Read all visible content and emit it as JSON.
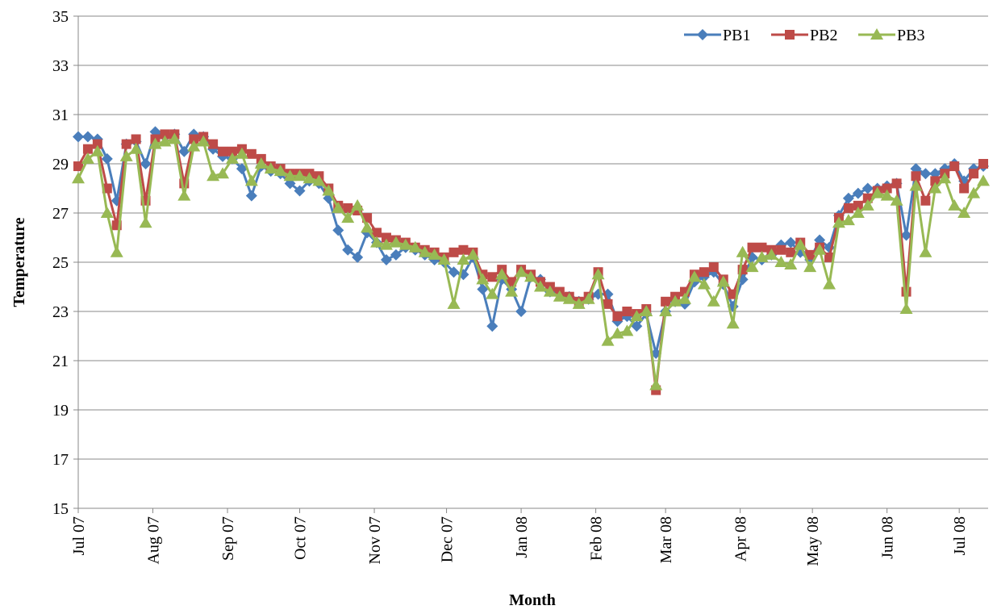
{
  "chart_data": {
    "type": "line",
    "x_label": "Month",
    "y_label": "Temperature",
    "x": [
      0,
      4,
      8,
      12,
      16,
      20,
      24,
      28,
      32,
      36,
      40,
      44,
      48,
      52,
      56,
      60,
      64,
      68,
      72,
      76,
      80,
      84,
      88,
      92,
      96,
      100,
      104,
      108,
      112,
      116,
      120,
      124,
      128,
      132,
      136,
      140,
      144,
      148,
      152,
      156,
      160,
      164,
      168,
      172,
      176,
      180,
      184,
      188,
      192,
      196,
      200,
      204,
      208,
      212,
      216,
      220,
      224,
      228,
      232,
      236,
      240,
      244,
      248,
      252,
      256,
      260,
      264,
      268,
      272,
      276,
      280,
      284,
      288,
      292,
      296,
      300,
      304,
      308,
      312,
      316,
      320,
      324,
      328,
      332,
      336,
      340,
      344,
      348,
      352,
      356,
      360,
      364,
      368,
      372,
      376
    ],
    "xlim": [
      0,
      378
    ],
    "xticks": [
      {
        "value": 0,
        "label": "Jul 07"
      },
      {
        "value": 31,
        "label": "Aug 07"
      },
      {
        "value": 62,
        "label": "Sep 07"
      },
      {
        "value": 92,
        "label": "Oct 07"
      },
      {
        "value": 123,
        "label": "Nov 07"
      },
      {
        "value": 153,
        "label": "Dec 07"
      },
      {
        "value": 184,
        "label": "Jan 08"
      },
      {
        "value": 215,
        "label": "Feb 08"
      },
      {
        "value": 244,
        "label": "Mar 08"
      },
      {
        "value": 275,
        "label": "Apr 08"
      },
      {
        "value": 305,
        "label": "May 08"
      },
      {
        "value": 336,
        "label": "Jun 08"
      },
      {
        "value": 366,
        "label": "Jul 08"
      }
    ],
    "ylim": [
      15,
      35
    ],
    "yticks": [
      15,
      17,
      19,
      21,
      23,
      25,
      27,
      29,
      31,
      33,
      35
    ],
    "grid": true,
    "legend": "top-right",
    "series": [
      {
        "name": "PB1",
        "color": "#4a7ebb",
        "marker": "diamond",
        "values": [
          30.1,
          30.1,
          30.0,
          29.2,
          27.5,
          29.8,
          29.9,
          29.0,
          30.3,
          30.1,
          30.2,
          29.5,
          30.2,
          30.1,
          29.6,
          29.3,
          29.2,
          28.8,
          27.7,
          28.9,
          28.7,
          28.6,
          28.2,
          27.9,
          28.3,
          28.2,
          27.6,
          26.3,
          25.5,
          25.2,
          26.2,
          25.8,
          25.1,
          25.3,
          25.6,
          25.5,
          25.3,
          25.1,
          25.0,
          24.6,
          24.5,
          25.2,
          23.9,
          22.4,
          24.3,
          23.9,
          23.0,
          24.4,
          24.3,
          23.8,
          23.7,
          23.6,
          23.4,
          23.5,
          23.7,
          23.7,
          22.6,
          22.8,
          22.4,
          22.9,
          21.3,
          23.0,
          23.4,
          23.3,
          24.2,
          24.4,
          24.6,
          24.1,
          23.2,
          24.3,
          25.2,
          25.1,
          25.3,
          25.7,
          25.8,
          25.4,
          25.1,
          25.9,
          25.6,
          26.9,
          27.6,
          27.8,
          28.0,
          28.0,
          28.1,
          28.2,
          26.1,
          28.8,
          28.6,
          28.6,
          28.8,
          29.0,
          28.3,
          28.8,
          28.9
        ]
      },
      {
        "name": "PB2",
        "color": "#be4b48",
        "marker": "square",
        "values": [
          28.9,
          29.6,
          29.8,
          28.0,
          26.5,
          29.8,
          30.0,
          27.5,
          30.0,
          30.2,
          30.2,
          28.2,
          30.0,
          30.1,
          29.8,
          29.5,
          29.5,
          29.6,
          29.4,
          29.2,
          28.9,
          28.8,
          28.6,
          28.6,
          28.6,
          28.5,
          28.0,
          27.3,
          27.2,
          27.1,
          26.8,
          26.2,
          26.0,
          25.9,
          25.8,
          25.6,
          25.5,
          25.4,
          25.2,
          25.4,
          25.5,
          25.4,
          24.5,
          24.4,
          24.7,
          24.2,
          24.7,
          24.5,
          24.2,
          24.0,
          23.8,
          23.6,
          23.4,
          23.6,
          24.6,
          23.3,
          22.8,
          23.0,
          22.9,
          23.1,
          19.8,
          23.4,
          23.6,
          23.8,
          24.5,
          24.6,
          24.8,
          24.3,
          23.7,
          24.7,
          25.6,
          25.6,
          25.5,
          25.5,
          25.4,
          25.8,
          25.3,
          25.6,
          25.2,
          26.8,
          27.2,
          27.3,
          27.6,
          27.9,
          28.0,
          28.2,
          23.8,
          28.5,
          27.5,
          28.3,
          28.6,
          28.9,
          28.0,
          28.6,
          29.0
        ]
      },
      {
        "name": "PB3",
        "color": "#98b954",
        "marker": "triangle",
        "values": [
          28.4,
          29.2,
          29.5,
          27.0,
          25.4,
          29.3,
          29.6,
          26.6,
          29.8,
          29.9,
          30.0,
          27.7,
          29.7,
          29.9,
          28.5,
          28.6,
          29.2,
          29.4,
          28.3,
          29.0,
          28.8,
          28.7,
          28.5,
          28.5,
          28.4,
          28.3,
          27.9,
          27.2,
          26.8,
          27.3,
          26.4,
          25.8,
          25.7,
          25.8,
          25.7,
          25.6,
          25.4,
          25.3,
          25.1,
          23.3,
          25.1,
          25.3,
          24.3,
          23.7,
          24.5,
          23.8,
          24.6,
          24.4,
          24.0,
          23.8,
          23.6,
          23.5,
          23.3,
          23.5,
          24.5,
          21.8,
          22.1,
          22.2,
          22.8,
          23.0,
          20.0,
          23.0,
          23.4,
          23.5,
          24.4,
          24.1,
          23.4,
          24.2,
          22.5,
          25.4,
          24.8,
          25.2,
          25.3,
          25.0,
          24.9,
          25.7,
          24.8,
          25.5,
          24.1,
          26.6,
          26.7,
          27.0,
          27.3,
          27.8,
          27.7,
          27.5,
          23.1,
          28.1,
          25.4,
          28.0,
          28.4,
          27.3,
          27.0,
          27.8,
          28.3
        ]
      }
    ]
  }
}
